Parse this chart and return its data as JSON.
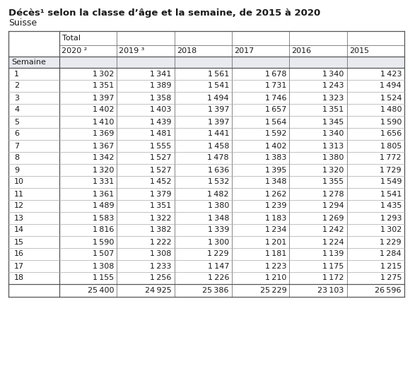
{
  "title": "Décès¹ selon la classe d’âge et la semaine, de 2015 à 2020",
  "subtitle": "Suisse",
  "total_label": "Total",
  "col_headers": [
    "2020 ²",
    "2019 ³",
    "2018",
    "2017",
    "2016",
    "2015"
  ],
  "row_header": "Semaine",
  "weeks": [
    1,
    2,
    3,
    4,
    5,
    6,
    7,
    8,
    9,
    10,
    11,
    12,
    13,
    14,
    15,
    16,
    17,
    18
  ],
  "data": {
    "2020": [
      1302,
      1351,
      1397,
      1402,
      1410,
      1369,
      1367,
      1342,
      1320,
      1331,
      1361,
      1489,
      1583,
      1816,
      1590,
      1507,
      1308,
      1155
    ],
    "2019": [
      1341,
      1389,
      1358,
      1403,
      1439,
      1481,
      1555,
      1527,
      1527,
      1452,
      1379,
      1351,
      1322,
      1382,
      1222,
      1308,
      1233,
      1256
    ],
    "2018": [
      1561,
      1541,
      1494,
      1397,
      1397,
      1441,
      1458,
      1478,
      1636,
      1532,
      1482,
      1380,
      1348,
      1339,
      1300,
      1229,
      1147,
      1226
    ],
    "2017": [
      1678,
      1731,
      1746,
      1657,
      1564,
      1592,
      1402,
      1383,
      1395,
      1348,
      1262,
      1239,
      1183,
      1234,
      1201,
      1181,
      1223,
      1210
    ],
    "2016": [
      1340,
      1243,
      1323,
      1351,
      1345,
      1340,
      1313,
      1380,
      1320,
      1355,
      1278,
      1294,
      1269,
      1242,
      1224,
      1139,
      1175,
      1172
    ],
    "2015": [
      1423,
      1494,
      1524,
      1480,
      1590,
      1656,
      1805,
      1772,
      1729,
      1549,
      1541,
      1435,
      1293,
      1302,
      1229,
      1284,
      1215,
      1275
    ]
  },
  "totals": [
    25400,
    24925,
    25386,
    25229,
    23103,
    26596
  ],
  "bg_color": "#ffffff",
  "semaine_bg": "#e8eaf0",
  "text_color": "#1a1a1a",
  "border_color": "#555555",
  "light_border": "#aaaaaa",
  "title_fontsize": 9.5,
  "subtitle_fontsize": 9,
  "table_fontsize": 8.0
}
